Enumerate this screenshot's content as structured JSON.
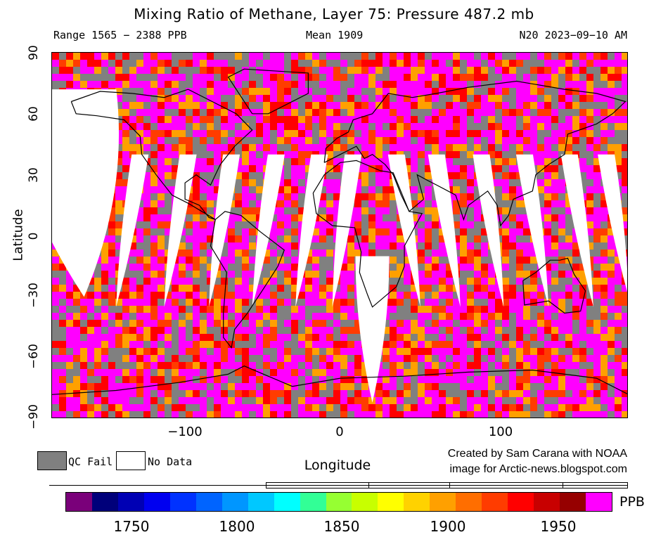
{
  "title": "Mixing Ratio of Methane, Layer 75: Pressure 487.2 mb",
  "subtitle": {
    "range": "Range 1565 − 2388 PPB",
    "mean": "Mean 1909",
    "source": "N20 2023−09−10 AM"
  },
  "axes": {
    "ylabel": "Latitude",
    "xlabel": "Longitude",
    "y_ticks": [
      "90",
      "60",
      "30",
      "0",
      "−30",
      "−60",
      "−90"
    ],
    "x_ticks": [
      "−100",
      "0",
      "100"
    ]
  },
  "legend": {
    "qc_fail": "QC Fail",
    "no_data": "No Data",
    "qc_fail_color": "#808080",
    "no_data_color": "#ffffff"
  },
  "credit": {
    "line1": "Created by Sam Carana with NOAA",
    "line2": "image for Arctic-news.blogspot.com"
  },
  "colorbar": {
    "unit": "PPB",
    "tick_labels": [
      "1750",
      "1800",
      "1850",
      "1900",
      "1950"
    ],
    "colors": [
      "#7a007a",
      "#00007a",
      "#0000b4",
      "#0000f0",
      "#0032ff",
      "#0064ff",
      "#0096ff",
      "#00c8ff",
      "#00ffff",
      "#32ff96",
      "#96ff32",
      "#c8ff00",
      "#ffff00",
      "#ffd200",
      "#ffa000",
      "#ff6e00",
      "#ff3c00",
      "#ff0000",
      "#c80000",
      "#960000",
      "#ff00ff"
    ]
  },
  "map": {
    "lon_range": [
      -180,
      180
    ],
    "lat_range": [
      -90,
      90
    ],
    "palette_by_lat": [
      {
        "lat_max": 90,
        "colors": [
          "#ff00ff",
          "#ff00ff",
          "#808080",
          "#ff00ff",
          "#ff3c00",
          "#ff0000",
          "#808080",
          "#ffa000"
        ]
      },
      {
        "lat_max": 40,
        "colors": [
          "#ff0000",
          "#ff3c00",
          "#ffa000",
          "#808080",
          "#ff6e00",
          "#ff00ff",
          "#ffff00",
          "#ff0000"
        ]
      },
      {
        "lat_max": 10,
        "colors": [
          "#ffa000",
          "#ffff00",
          "#808080",
          "#96ff32",
          "#ff6e00",
          "#00ffff",
          "#ff3c00",
          "#c8ff00"
        ]
      },
      {
        "lat_max": -20,
        "colors": [
          "#00ffff",
          "#96ff32",
          "#ffff00",
          "#0096ff",
          "#808080",
          "#32ff96",
          "#00c8ff",
          "#ffa000"
        ]
      },
      {
        "lat_max": -55,
        "colors": [
          "#ff3c00",
          "#ff0000",
          "#ffa000",
          "#808080",
          "#ff00ff",
          "#ffff00",
          "#ff6e00",
          "#ffd200"
        ]
      },
      {
        "lat_max": -75,
        "colors": [
          "#0064ff",
          "#0096ff",
          "#00c8ff",
          "#808080",
          "#0032ff",
          "#00ffff",
          "#808080",
          "#0000f0"
        ]
      }
    ]
  }
}
